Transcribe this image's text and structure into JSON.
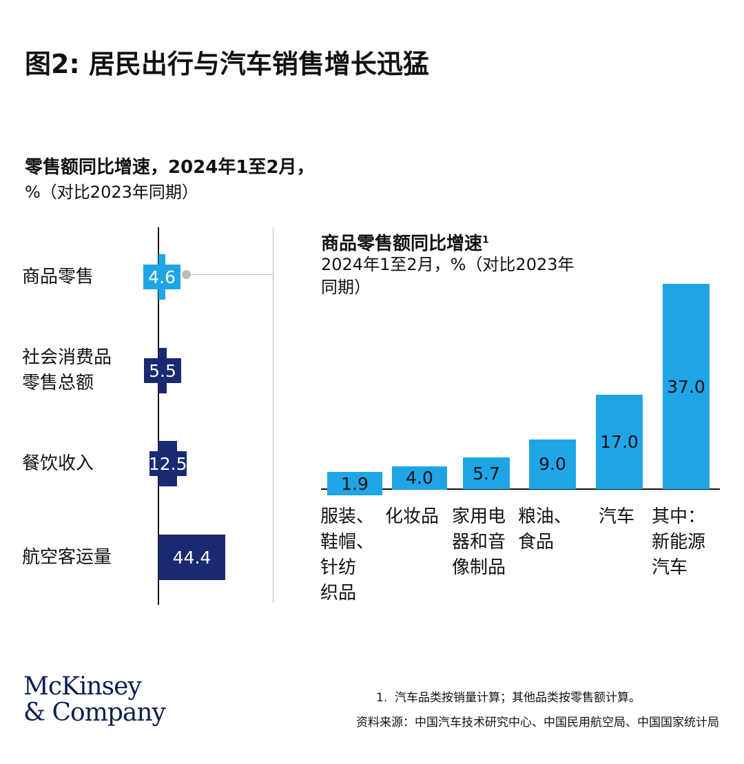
{
  "header": {
    "title": "图2: 居民出行与汽车销售增长迅猛",
    "subtitle": "零售额同比增速，2024年1至2月，",
    "unit": "%（对比2023年同期）"
  },
  "chart_data": [
    {
      "type": "hbar",
      "categories": [
        "商品零售",
        "社会消费品\n零售总额",
        "餐饮收入",
        "航空客运量"
      ],
      "values": [
        4.6,
        5.5,
        12.5,
        44.4
      ],
      "colors": [
        "#1fa5e6",
        "#1a2a72",
        "#1a2a72",
        "#1a2a72"
      ]
    },
    {
      "type": "bar",
      "title": "商品零售额同比增速",
      "title_note": "1",
      "subtitle": "2024年1至2月，%（对比2023年\n同期）",
      "categories": [
        "服装、\n鞋帽、\n针纺\n织品",
        "化妆品",
        "家用电\n器和音\n像制品",
        "粮油、\n食品",
        "汽车",
        "其中：\n新能源\n汽车"
      ],
      "values": [
        1.9,
        4.0,
        5.7,
        9.0,
        17.0,
        37.0
      ],
      "value_labels": [
        "1.9",
        "4.0",
        "5.7",
        "9.0",
        "17.0",
        "37.0"
      ],
      "color": "#1fa5e6"
    }
  ],
  "footer": {
    "logo": "McKinsey\n& Company",
    "note_marker": "1.",
    "note": "汽车品类按销量计算；其他品类按零售额计算。",
    "source": "资料来源：中国汽车技术研究中心、中国民用航空局、中国国家统计局"
  }
}
